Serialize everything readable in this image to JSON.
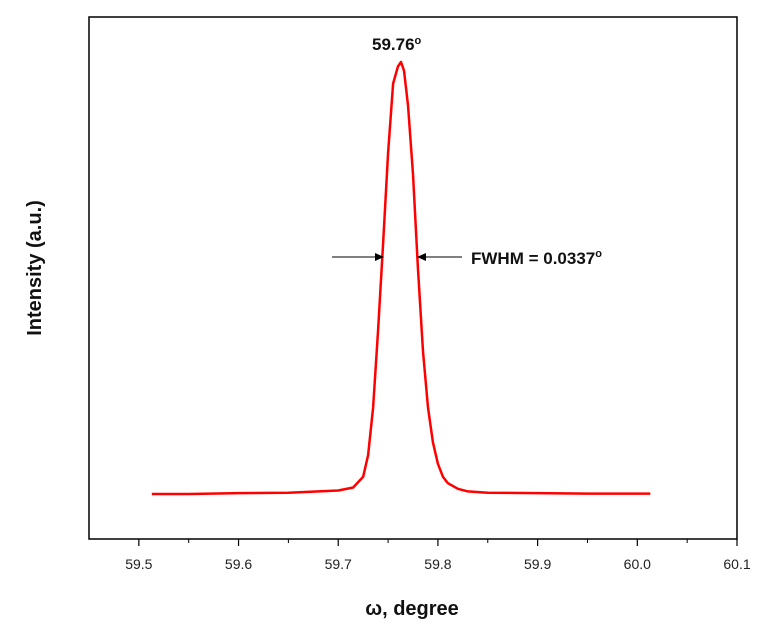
{
  "chart_data": {
    "type": "line",
    "xlabel": "ω, degree",
    "ylabel": "Intensity (a.u.)",
    "xlim": [
      59.45,
      60.1
    ],
    "ylim": [
      0,
      1.12
    ],
    "xticks": [
      59.5,
      59.6,
      59.7,
      59.8,
      59.9,
      60.0,
      60.1
    ],
    "xtick_labels": [
      "59.5",
      "59.6",
      "59.7",
      "59.8",
      "59.9",
      "60.0",
      "60.1"
    ],
    "grid": false,
    "legend": "none",
    "series": [
      {
        "color": "#ff0000",
        "x": [
          59.513,
          59.55,
          59.6,
          59.65,
          59.7,
          59.715,
          59.725,
          59.73,
          59.735,
          59.74,
          59.745,
          59.75,
          59.755,
          59.76,
          59.763,
          59.766,
          59.77,
          59.775,
          59.78,
          59.785,
          59.79,
          59.795,
          59.8,
          59.805,
          59.81,
          59.82,
          59.83,
          59.85,
          59.9,
          59.95,
          60.013
        ],
        "y": [
          0.0,
          0.0,
          0.002,
          0.003,
          0.008,
          0.015,
          0.04,
          0.09,
          0.2,
          0.38,
          0.58,
          0.79,
          0.95,
          0.99,
          1.0,
          0.98,
          0.9,
          0.74,
          0.52,
          0.33,
          0.2,
          0.12,
          0.07,
          0.04,
          0.025,
          0.012,
          0.006,
          0.003,
          0.002,
          0.001,
          0.001
        ]
      }
    ],
    "annotations": {
      "peak": {
        "text": "59.76",
        "sup": "o",
        "x": 59.763
      },
      "fwhm": {
        "text": "FWHM = 0.0337",
        "sup": "o"
      }
    }
  }
}
